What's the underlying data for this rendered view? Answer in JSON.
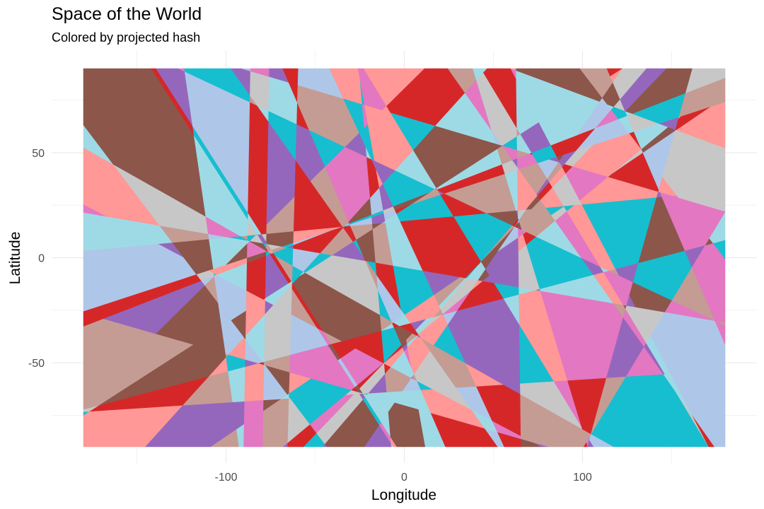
{
  "chart_data": {
    "type": "heatmap",
    "title": "Space of the World",
    "subtitle": "Colored by projected hash",
    "xlabel": "Longitude",
    "ylabel": "Latitude",
    "xlim": [
      -180,
      180
    ],
    "ylim": [
      -90,
      90
    ],
    "x_ticks": [
      -100,
      0,
      100
    ],
    "y_ticks": [
      -50,
      0,
      50
    ],
    "grid": true,
    "palette": [
      "#e377c2",
      "#2ca02c",
      "#8c564b",
      "#1f77b4",
      "#d62728",
      "#ff7f0e",
      "#9467bd",
      "#bcbd22",
      "#17becf",
      "#7f7f7f",
      "#aec7e8",
      "#98df8a",
      "#ff9896",
      "#c5b0d5",
      "#c49c94",
      "#f7b6d2",
      "#c7c7c7",
      "#dbdb8d",
      "#9edae5",
      "#ffbb78"
    ],
    "background": "#ffffff",
    "gridline_color": "#ebebeb"
  }
}
